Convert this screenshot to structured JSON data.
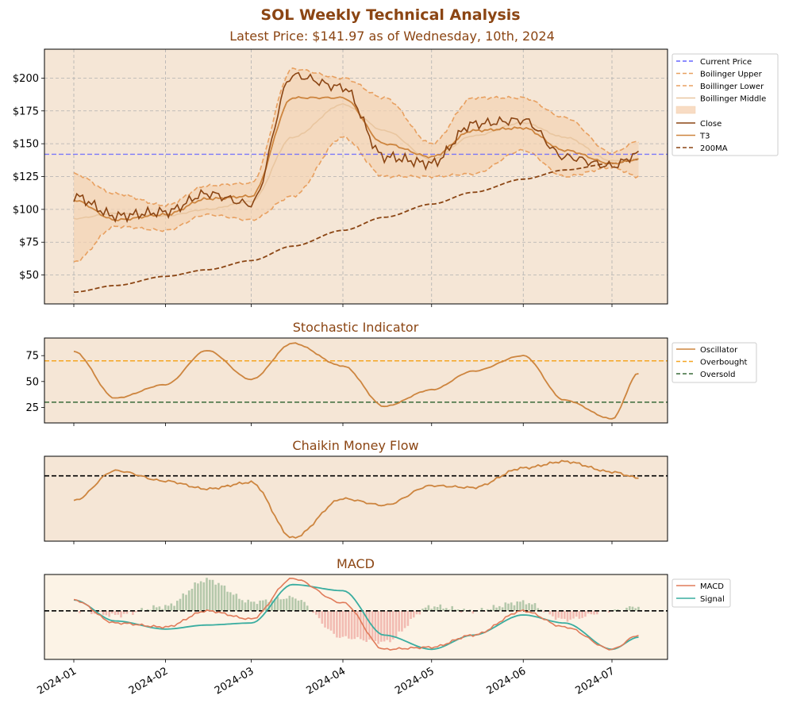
{
  "title": "SOL Weekly Technical Analysis",
  "subtitle": "Latest Price: $141.97 as of Wednesday, 10th, 2024",
  "colors": {
    "panel_bg": "#f5e6d6",
    "macd_bg": "#fcf3e6",
    "title": "#8b4513",
    "close": "#8b4513",
    "t3": "#cd853f",
    "band": "#e8a060",
    "band_fill": "#f3d3b3",
    "middle": "#e9c6a0",
    "ma200": "#8b4513",
    "current": "#6666ff",
    "overbought": "#f5a623",
    "oversold": "#3a6b3a",
    "macd": "#e07b5a",
    "signal": "#3aada0",
    "hist_pos": "#a8c0a0",
    "hist_neg": "#f0b0a8"
  },
  "chart_data": [
    {
      "type": "line",
      "name": "price",
      "title": "SOL Weekly Technical Analysis",
      "subtitle": "Latest Price: $141.97 as of Wednesday, 10th, 2024",
      "x_ticks": [
        "2024-01",
        "2024-02",
        "2024-03",
        "2024-04",
        "2024-05",
        "2024-06",
        "2024-07"
      ],
      "y_ticks": [
        "$50",
        "$75",
        "$100",
        "$125",
        "$150",
        "$175",
        "$200"
      ],
      "y_tick_values": [
        50,
        75,
        100,
        125,
        150,
        175,
        200
      ],
      "ylim": [
        28,
        222
      ],
      "grid": true,
      "legend": "upper-right-outside",
      "current_price": 141.97,
      "legend_entries": [
        "Current Price",
        "Boilinger Upper",
        "Boillinger Lower",
        "Boillinger Middle",
        "",
        "Close",
        "T3",
        "200MA"
      ],
      "x": [
        "2024-01-01",
        "2024-01-15",
        "2024-02-01",
        "2024-02-15",
        "2024-03-01",
        "2024-03-15",
        "2024-04-01",
        "2024-04-15",
        "2024-05-01",
        "2024-05-15",
        "2024-06-01",
        "2024-06-15",
        "2024-07-01",
        "2024-07-10"
      ],
      "series": [
        {
          "name": "Close",
          "values": [
            110,
            95,
            98,
            112,
            104,
            202,
            193,
            140,
            135,
            165,
            168,
            140,
            133,
            141.97
          ]
        },
        {
          "name": "T3",
          "values": [
            107,
            92,
            96,
            108,
            110,
            185,
            185,
            150,
            140,
            160,
            162,
            145,
            135,
            138
          ]
        },
        {
          "name": "Boilinger Upper",
          "values": [
            127,
            112,
            103,
            118,
            120,
            207,
            200,
            185,
            150,
            185,
            185,
            170,
            143,
            152
          ]
        },
        {
          "name": "Boillinger Lower",
          "values": [
            60,
            87,
            84,
            96,
            92,
            110,
            155,
            125,
            125,
            127,
            145,
            125,
            132,
            125
          ]
        },
        {
          "name": "Boillinger Middle",
          "values": [
            93,
            97,
            95,
            100,
            106,
            155,
            180,
            160,
            138,
            156,
            166,
            155,
            137,
            138
          ]
        },
        {
          "name": "200MA",
          "values": [
            37,
            42,
            49,
            54,
            61,
            72,
            84,
            94,
            104,
            113,
            123,
            130,
            135,
            138
          ]
        }
      ]
    },
    {
      "type": "line",
      "name": "stochastic",
      "title": "Stochastic Indicator",
      "y_ticks": [
        "25",
        "50",
        "75"
      ],
      "y_tick_values": [
        25,
        50,
        75
      ],
      "ylim": [
        10,
        92
      ],
      "legend_entries": [
        "Oscillator",
        "Overbought",
        "Oversold"
      ],
      "overbought": 70,
      "oversold": 30,
      "x": [
        "2024-01-01",
        "2024-01-15",
        "2024-02-01",
        "2024-02-15",
        "2024-03-01",
        "2024-03-15",
        "2024-04-01",
        "2024-04-15",
        "2024-05-01",
        "2024-05-15",
        "2024-06-01",
        "2024-06-15",
        "2024-07-01",
        "2024-07-10"
      ],
      "series": [
        {
          "name": "Oscillator",
          "values": [
            79,
            34,
            47,
            80,
            52,
            87,
            65,
            26,
            42,
            60,
            75,
            32,
            14,
            58
          ]
        }
      ]
    },
    {
      "type": "line",
      "name": "cmf",
      "title": "Chaikin Money Flow",
      "ylim": [
        -1,
        0.3
      ],
      "zero_line": 0,
      "x": [
        "2024-01-01",
        "2024-01-15",
        "2024-02-01",
        "2024-02-15",
        "2024-03-01",
        "2024-03-15",
        "2024-04-01",
        "2024-04-15",
        "2024-05-01",
        "2024-05-15",
        "2024-06-01",
        "2024-06-15",
        "2024-07-01",
        "2024-07-10"
      ],
      "series": [
        {
          "name": "CMF",
          "values": [
            -0.38,
            0.08,
            -0.08,
            -0.2,
            -0.1,
            -0.95,
            -0.35,
            -0.45,
            -0.15,
            -0.18,
            0.12,
            0.22,
            0.06,
            -0.03
          ]
        }
      ]
    },
    {
      "type": "line",
      "name": "macd",
      "title": "MACD",
      "ylim": [
        -1.2,
        0.9
      ],
      "zero_line": 0,
      "legend_entries": [
        "MACD",
        "Signal"
      ],
      "x": [
        "2024-01-01",
        "2024-01-15",
        "2024-02-01",
        "2024-02-15",
        "2024-03-01",
        "2024-03-15",
        "2024-04-01",
        "2024-04-15",
        "2024-05-01",
        "2024-05-15",
        "2024-06-01",
        "2024-06-15",
        "2024-07-01",
        "2024-07-10"
      ],
      "series": [
        {
          "name": "MACD",
          "values": [
            0.27,
            -0.3,
            -0.4,
            0.0,
            -0.2,
            0.8,
            0.2,
            -0.95,
            -0.9,
            -0.6,
            0.0,
            -0.4,
            -0.95,
            -0.6
          ]
        },
        {
          "name": "Signal",
          "values": [
            0.27,
            -0.25,
            -0.45,
            -0.35,
            -0.3,
            0.65,
            0.5,
            -0.6,
            -0.95,
            -0.6,
            -0.1,
            -0.3,
            -0.95,
            -0.65
          ]
        }
      ]
    }
  ]
}
